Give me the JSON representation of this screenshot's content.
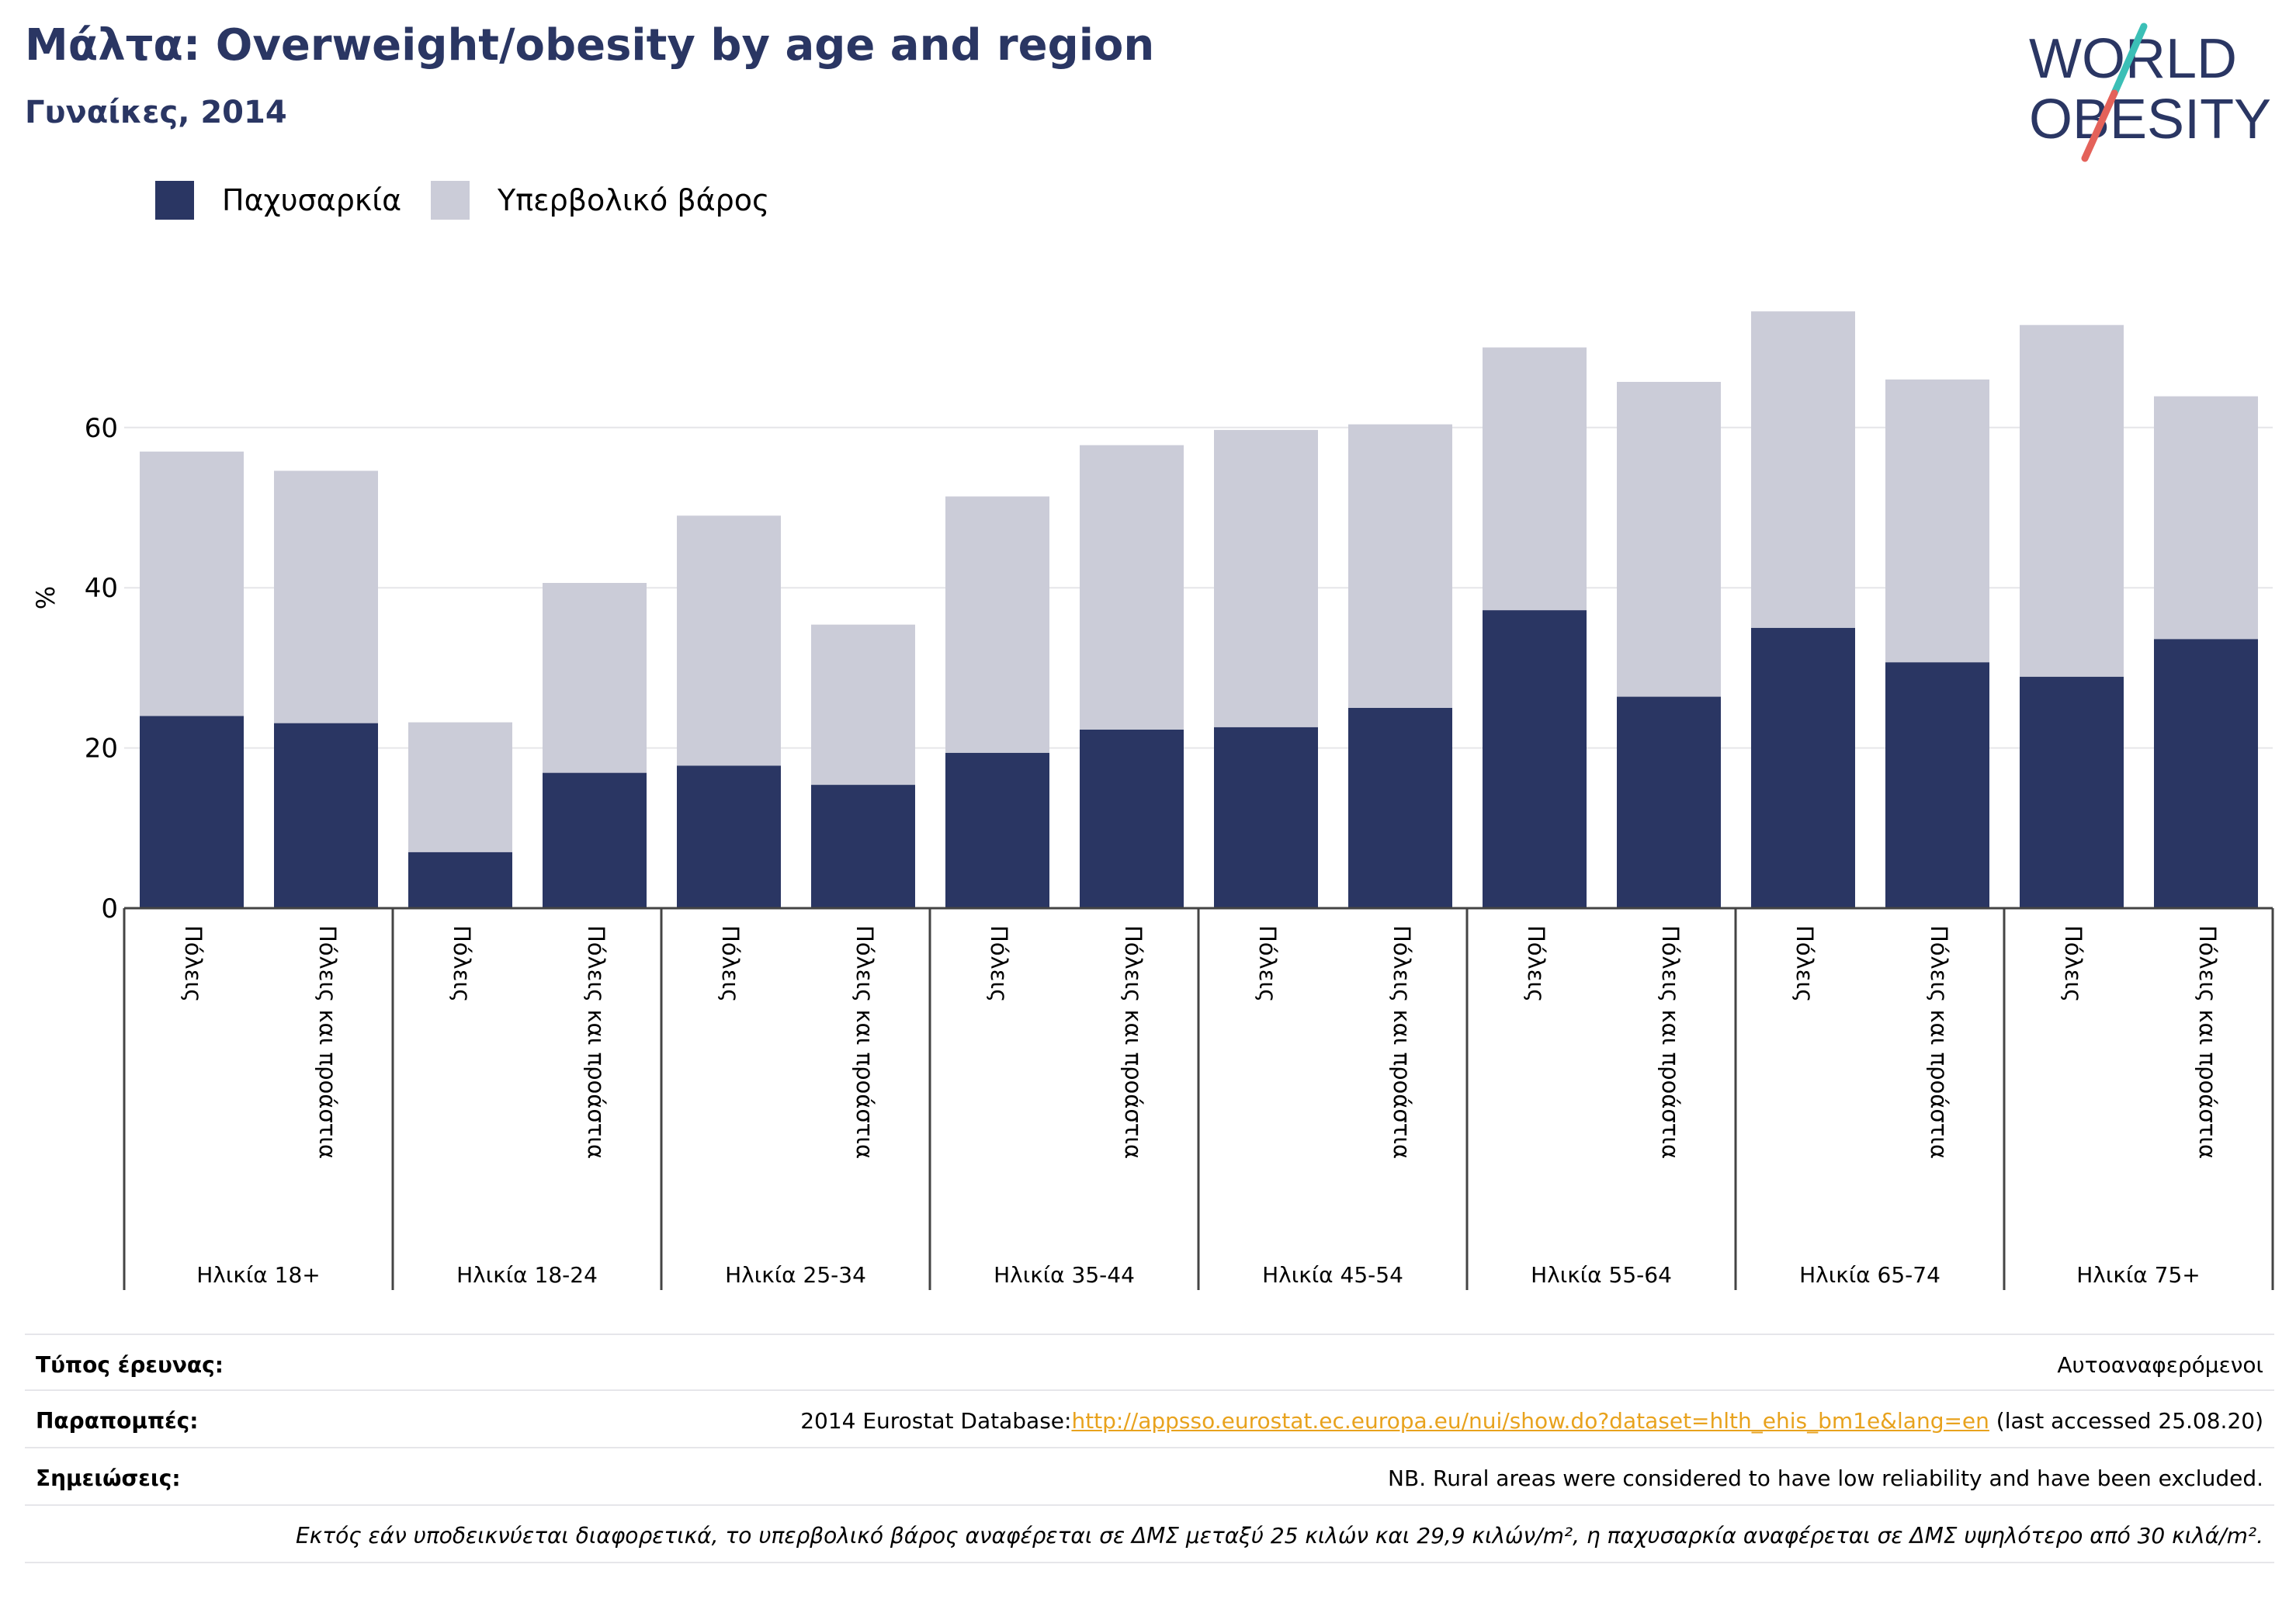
{
  "header": {
    "title": "Μάλτα: Overweight/obesity by age and region",
    "subtitle": "Γυναίκες, 2014",
    "logo_line1": "WORLD",
    "logo_line2": "OBESITY"
  },
  "legend": {
    "obesity_label": "Παχυσαρκία",
    "overweight_label": "Υπερβολικό βάρος"
  },
  "colors": {
    "obesity": "#2a3663",
    "overweight": "#cbccd8",
    "title": "#2a3663",
    "link": "#e8a21d",
    "logo_teal": "#3bbfb6",
    "logo_red": "#e4625a"
  },
  "chart_data": {
    "type": "bar",
    "stacked": true,
    "ylabel": "%",
    "ylim": [
      0,
      80
    ],
    "yticks": [
      0,
      20,
      40,
      60
    ],
    "grid": true,
    "legend_position": "top-left",
    "groups": [
      "Ηλικία 18+",
      "Ηλικία 18-24",
      "Ηλικία 25-34",
      "Ηλικία 35-44",
      "Ηλικία 45-54",
      "Ηλικία 55-64",
      "Ηλικία 65-74",
      "Ηλικία 75+"
    ],
    "subcategories": [
      "Πόλεις",
      "Πόλεις και προάστια"
    ],
    "series": [
      {
        "name": "Παχυσαρκία",
        "values": [
          24.0,
          23.1,
          7.0,
          16.9,
          17.8,
          15.4,
          19.4,
          22.3,
          22.6,
          25.0,
          37.2,
          26.4,
          35.0,
          30.7,
          28.9,
          33.6
        ]
      },
      {
        "name": "Υπερβολικό βάρος",
        "values": [
          33.0,
          31.5,
          16.2,
          23.7,
          31.2,
          20.0,
          32.0,
          35.5,
          37.1,
          35.4,
          32.8,
          39.3,
          39.5,
          35.3,
          43.9,
          30.3
        ]
      }
    ]
  },
  "footer": {
    "survey_type_label": "Τύπος έρευνας:",
    "survey_type_value": "Αυτοαναφερόμενοι",
    "references_label": "Παραπομπές:",
    "references_prefix": "2014 Eurostat Database:",
    "references_link": "http://appsso.eurostat.ec.europa.eu/nui/show.do?dataset=hlth_ehis_bm1e&lang=en",
    "references_suffix": " (last accessed 25.08.20)",
    "notes_label": "Σημειώσεις:",
    "notes_value": "NB. Rural areas were considered to have low reliability and have been excluded.",
    "definition": "Εκτός εάν υποδεικνύεται διαφορετικά, το υπερβολικό βάρος αναφέρεται σε ΔΜΣ μεταξύ 25 κιλών και 29,9 κιλών/m², η παχυσαρκία αναφέρεται σε ΔΜΣ υψηλότερο από 30 κιλά/m²."
  }
}
